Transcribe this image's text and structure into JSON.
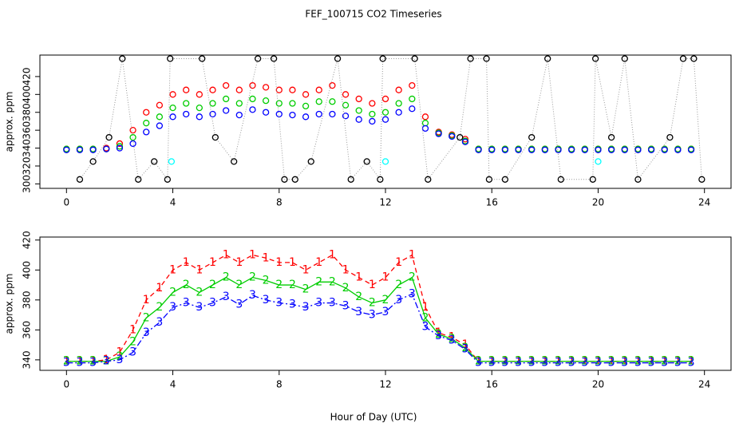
{
  "chart_data": [
    {
      "type": "scatter",
      "title": "FEF_100715  CO2 Timeseries",
      "ylabel": "approx. ppm",
      "xlim": [
        -1,
        25
      ],
      "xticks": [
        0,
        4,
        8,
        12,
        16,
        20,
        24
      ],
      "ylim": [
        295,
        444
      ],
      "yticks": [
        300,
        320,
        340,
        360,
        380,
        400,
        420
      ],
      "x": [
        0,
        0.5,
        1,
        1.5,
        2,
        2.5,
        3,
        3.5,
        4,
        4.5,
        5,
        5.5,
        6,
        6.5,
        7,
        7.5,
        8,
        8.5,
        9,
        9.5,
        10,
        10.5,
        11,
        11.5,
        12,
        12.5,
        13,
        13.5,
        14,
        14.5,
        15,
        15.5,
        16,
        16.5,
        17,
        17.5,
        18,
        18.5,
        19,
        19.5,
        20,
        20.5,
        21,
        21.5,
        22,
        22.5,
        23,
        23.5
      ],
      "series": [
        {
          "color": "#ff0000",
          "values": [
            339,
            339,
            339,
            340,
            345,
            360,
            380,
            388,
            400,
            405,
            400,
            405,
            410,
            405,
            410,
            408,
            405,
            405,
            400,
            405,
            410,
            400,
            395,
            390,
            395,
            405,
            410,
            375,
            358,
            355,
            350,
            339,
            339,
            339,
            339,
            339,
            339,
            339,
            339,
            339,
            339,
            339,
            339,
            339,
            339,
            339,
            339,
            339
          ]
        },
        {
          "color": "#00cd00",
          "values": [
            339,
            339,
            339,
            339,
            342,
            352,
            368,
            375,
            385,
            390,
            385,
            390,
            395,
            390,
            395,
            393,
            390,
            390,
            387,
            392,
            392,
            388,
            382,
            378,
            380,
            390,
            395,
            368,
            357,
            354,
            348,
            339,
            339,
            339,
            339,
            339,
            339,
            339,
            339,
            339,
            339,
            339,
            339,
            339,
            339,
            339,
            339,
            339
          ]
        },
        {
          "color": "#0000ff",
          "values": [
            338,
            338,
            338,
            339,
            340,
            345,
            358,
            365,
            375,
            378,
            375,
            378,
            382,
            377,
            383,
            380,
            378,
            377,
            375,
            378,
            378,
            376,
            372,
            370,
            372,
            380,
            384,
            362,
            356,
            353,
            347,
            338,
            338,
            338,
            338,
            338,
            338,
            338,
            338,
            338,
            338,
            338,
            338,
            338,
            338,
            338,
            338,
            338
          ]
        },
        {
          "color": "#000000",
          "connect": true,
          "x": [
            0.5,
            1.0,
            1.6,
            2.1,
            2.7,
            3.3,
            3.8,
            3.9,
            5.1,
            5.6,
            6.3,
            7.2,
            7.8,
            8.2,
            8.6,
            9.2,
            10.2,
            10.7,
            11.3,
            11.8,
            11.9,
            13.1,
            13.6,
            14.8,
            15.2,
            15.8,
            15.9,
            16.5,
            17.5,
            18.1,
            18.6,
            19.8,
            19.9,
            20.5,
            21.0,
            21.5,
            22.7,
            23.2,
            23.6,
            23.9
          ],
          "values": [
            305,
            325,
            352,
            440,
            305,
            325,
            305,
            440,
            440,
            352,
            325,
            440,
            440,
            305,
            305,
            325,
            440,
            305,
            325,
            305,
            440,
            440,
            305,
            352,
            440,
            440,
            305,
            305,
            352,
            440,
            305,
            305,
            440,
            352,
            440,
            305,
            352,
            440,
            440,
            305
          ]
        },
        {
          "color": "#00ffff",
          "x": [
            3.95,
            12.0,
            20.0
          ],
          "values": [
            325,
            325,
            325
          ]
        }
      ]
    },
    {
      "type": "line",
      "ylabel": "approx. ppm",
      "xlabel": "Hour of Day (UTC)",
      "xlim": [
        -1,
        25
      ],
      "xticks": [
        0,
        4,
        8,
        12,
        16,
        20,
        24
      ],
      "ylim": [
        333,
        422
      ],
      "yticks": [
        340,
        360,
        380,
        400,
        420
      ],
      "x": [
        0,
        0.5,
        1,
        1.5,
        2,
        2.5,
        3,
        3.5,
        4,
        4.5,
        5,
        5.5,
        6,
        6.5,
        7,
        7.5,
        8,
        8.5,
        9,
        9.5,
        10,
        10.5,
        11,
        11.5,
        12,
        12.5,
        13,
        13.5,
        14,
        14.5,
        15,
        15.5,
        16,
        16.5,
        17,
        17.5,
        18,
        18.5,
        19,
        19.5,
        20,
        20.5,
        21,
        21.5,
        22,
        22.5,
        23,
        23.5
      ],
      "series": [
        {
          "marker": "1",
          "color": "#ff0000",
          "dash": "6,4",
          "values": [
            339,
            339,
            339,
            340,
            345,
            360,
            380,
            388,
            400,
            405,
            400,
            405,
            410,
            405,
            410,
            408,
            405,
            405,
            400,
            405,
            410,
            400,
            395,
            390,
            395,
            405,
            410,
            375,
            358,
            355,
            350,
            339,
            339,
            339,
            339,
            339,
            339,
            339,
            339,
            339,
            339,
            339,
            339,
            339,
            339,
            339,
            339,
            339
          ]
        },
        {
          "marker": "2",
          "color": "#00cd00",
          "dash": "none",
          "values": [
            339,
            339,
            339,
            339,
            342,
            352,
            368,
            375,
            385,
            390,
            385,
            390,
            395,
            390,
            395,
            393,
            390,
            390,
            387,
            392,
            392,
            388,
            382,
            378,
            380,
            390,
            395,
            368,
            357,
            354,
            348,
            339,
            339,
            339,
            339,
            339,
            339,
            339,
            339,
            339,
            339,
            339,
            339,
            339,
            339,
            339,
            339,
            339
          ]
        },
        {
          "marker": "3",
          "color": "#0000ff",
          "dash": "8,3,2,3",
          "values": [
            338,
            338,
            338,
            339,
            340,
            345,
            358,
            365,
            375,
            378,
            375,
            378,
            382,
            377,
            383,
            380,
            378,
            377,
            375,
            378,
            378,
            376,
            372,
            370,
            372,
            380,
            384,
            362,
            356,
            353,
            347,
            338,
            338,
            338,
            338,
            338,
            338,
            338,
            338,
            338,
            338,
            338,
            338,
            338,
            338,
            338,
            338,
            338
          ]
        }
      ]
    }
  ]
}
